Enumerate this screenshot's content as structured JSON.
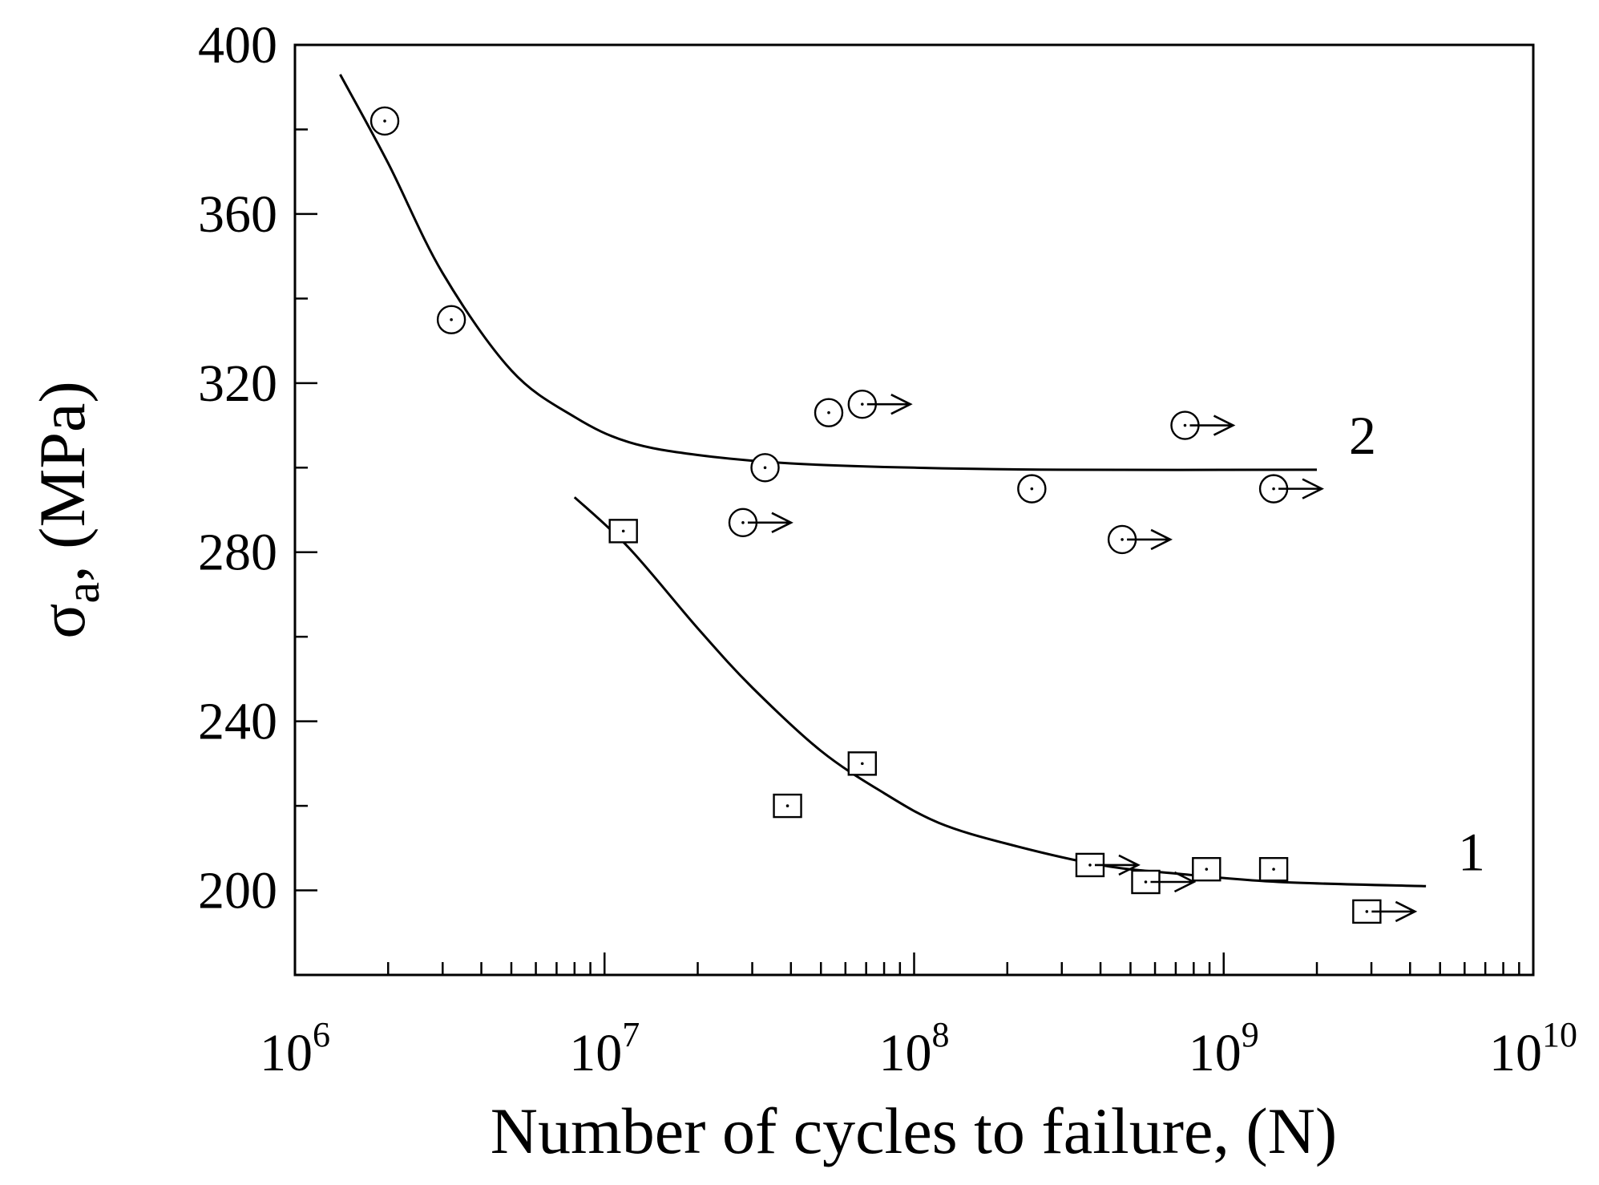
{
  "chart_data": {
    "type": "scatter",
    "title": "",
    "xlabel": "Number of cycles to failure, (N)",
    "ylabel_main": "σ",
    "ylabel_sub": "a",
    "ylabel_rest": ", (MPa)",
    "xscale": "log",
    "xlim": [
      1000000,
      10000000000
    ],
    "ylim": [
      180,
      400
    ],
    "y_ticks": [
      200,
      240,
      280,
      320,
      360,
      400
    ],
    "y_minor_ticks": [
      220,
      260,
      300,
      340,
      380
    ],
    "x_major_ticks": [
      {
        "value": 1000000,
        "base": "10",
        "exp": "6"
      },
      {
        "value": 10000000,
        "base": "10",
        "exp": "7"
      },
      {
        "value": 100000000,
        "base": "10",
        "exp": "8"
      },
      {
        "value": 1000000000,
        "base": "10",
        "exp": "9"
      },
      {
        "value": 10000000000,
        "base": "10",
        "exp": "10"
      }
    ],
    "grid": false,
    "series": [
      {
        "marker": "square",
        "label": "1",
        "points": [
          {
            "x": 11500000,
            "y": 285,
            "runout": false
          },
          {
            "x": 39000000,
            "y": 220,
            "runout": false
          },
          {
            "x": 68000000,
            "y": 230,
            "runout": false
          },
          {
            "x": 370000000,
            "y": 206,
            "runout": true
          },
          {
            "x": 560000000,
            "y": 202,
            "runout": true
          },
          {
            "x": 880000000,
            "y": 205,
            "runout": false
          },
          {
            "x": 1450000000,
            "y": 205,
            "runout": false
          },
          {
            "x": 2900000000,
            "y": 195,
            "runout": true
          }
        ],
        "curve": [
          {
            "x": 8000000,
            "y": 293
          },
          {
            "x": 12000000,
            "y": 281
          },
          {
            "x": 20000000,
            "y": 262
          },
          {
            "x": 30000000,
            "y": 248
          },
          {
            "x": 50000000,
            "y": 233
          },
          {
            "x": 80000000,
            "y": 223
          },
          {
            "x": 120000000,
            "y": 216
          },
          {
            "x": 200000000,
            "y": 211
          },
          {
            "x": 400000000,
            "y": 206
          },
          {
            "x": 700000000,
            "y": 204
          },
          {
            "x": 1500000000,
            "y": 202
          },
          {
            "x": 4500000000,
            "y": 201
          }
        ]
      },
      {
        "marker": "circle",
        "label": "2",
        "points": [
          {
            "x": 1950000,
            "y": 382,
            "runout": false
          },
          {
            "x": 3200000,
            "y": 335,
            "runout": false
          },
          {
            "x": 28000000,
            "y": 287,
            "runout": true
          },
          {
            "x": 33000000,
            "y": 300,
            "runout": false
          },
          {
            "x": 53000000,
            "y": 313,
            "runout": false
          },
          {
            "x": 68000000,
            "y": 315,
            "runout": true
          },
          {
            "x": 240000000,
            "y": 295,
            "runout": false
          },
          {
            "x": 470000000,
            "y": 283,
            "runout": true
          },
          {
            "x": 750000000,
            "y": 310,
            "runout": true
          },
          {
            "x": 1450000000,
            "y": 295,
            "runout": true
          }
        ],
        "curve": [
          {
            "x": 1400000,
            "y": 393
          },
          {
            "x": 2000000,
            "y": 372
          },
          {
            "x": 3000000,
            "y": 346
          },
          {
            "x": 5000000,
            "y": 323
          },
          {
            "x": 8000000,
            "y": 312
          },
          {
            "x": 12000000,
            "y": 306
          },
          {
            "x": 20000000,
            "y": 303
          },
          {
            "x": 40000000,
            "y": 301
          },
          {
            "x": 100000000,
            "y": 300
          },
          {
            "x": 300000000,
            "y": 299.5
          },
          {
            "x": 2000000000,
            "y": 299.5
          }
        ]
      }
    ]
  }
}
